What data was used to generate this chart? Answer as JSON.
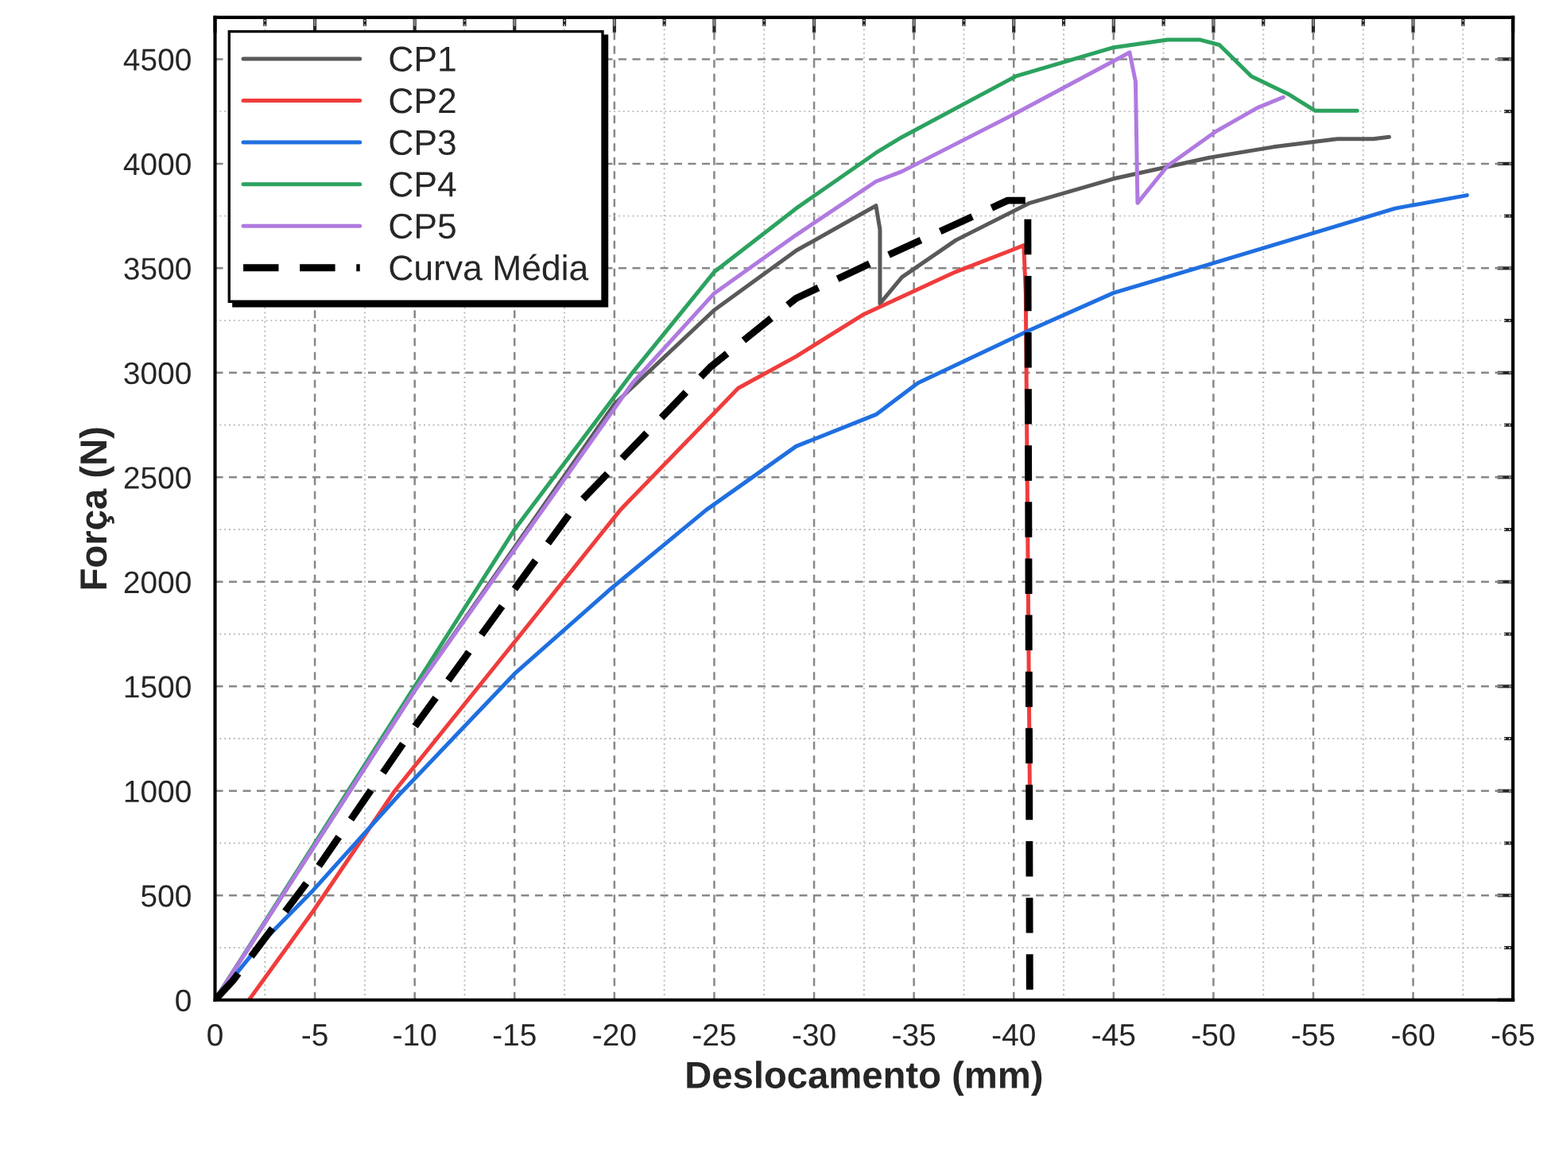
{
  "chart_data": {
    "type": "line",
    "xlabel": "Deslocamento (mm)",
    "ylabel": "Força (N)",
    "xlim": [
      0,
      -65
    ],
    "ylim": [
      0,
      4700
    ],
    "xticks": [
      0,
      -5,
      -10,
      -15,
      -20,
      -25,
      -30,
      -35,
      -40,
      -45,
      -50,
      -55,
      -60,
      -65
    ],
    "yticks": [
      0,
      500,
      1000,
      1500,
      2000,
      2500,
      3000,
      3500,
      4000,
      4500
    ],
    "grid": true,
    "legend": "top left",
    "marker": "none",
    "series": [
      {
        "name": "CP1",
        "color": "#595959",
        "line_style": "solid",
        "x": [
          0,
          -10,
          -20,
          -25,
          -29.1,
          -33.1,
          -33.3,
          -33.3,
          -34.4,
          -37.1,
          -40.8,
          -45.0,
          -49.8,
          -53.0,
          -56.2,
          -58.0,
          -58.8
        ],
        "values": [
          0,
          1480,
          2850,
          3300,
          3584,
          3799,
          3685,
          3331,
          3457,
          3634,
          3812,
          3928,
          4029,
          4080,
          4118,
          4118,
          4128
        ]
      },
      {
        "name": "CP2",
        "color": "#f03c3c",
        "line_style": "solid",
        "x": [
          -1.7,
          -4.9,
          -9.0,
          -15.0,
          -20.3,
          -26.2,
          -29.1,
          -32.5,
          -37.1,
          -40.5,
          -40.6,
          -40.8
        ],
        "values": [
          0,
          423,
          1000,
          1712,
          2344,
          2926,
          3078,
          3280,
          3483,
          3609,
          3382,
          1029
        ]
      },
      {
        "name": "CP3",
        "color": "#1f6fe0",
        "line_style": "solid",
        "x": [
          0,
          -2.3,
          -4.9,
          -9.2,
          -15.0,
          -19.8,
          -24.6,
          -29.1,
          -33.1,
          -35.2,
          -40.8,
          -45.0,
          -50.3,
          -55.6,
          -59.1,
          -62.7
        ],
        "values": [
          0,
          271,
          523,
          979,
          1560,
          1965,
          2344,
          2648,
          2800,
          2951,
          3204,
          3382,
          3533,
          3685,
          3786,
          3849
        ]
      },
      {
        "name": "CP4",
        "color": "#2ca25f",
        "line_style": "solid",
        "x": [
          0,
          -10,
          -15,
          -20.9,
          -25,
          -29.1,
          -33.1,
          -34.4,
          -40.1,
          -45.0,
          -47.7,
          -49.3,
          -50.3,
          -51.9,
          -53.8,
          -55.1,
          -57.2
        ],
        "values": [
          0,
          1500,
          2250,
          3000,
          3482,
          3786,
          4052,
          4127,
          4418,
          4556,
          4593,
          4593,
          4568,
          4418,
          4330,
          4253,
          4253
        ]
      },
      {
        "name": "CP5",
        "color": "#b07ae0",
        "line_style": "solid",
        "x": [
          0,
          -10,
          -20.9,
          -25,
          -29.1,
          -33.1,
          -34.4,
          -40.1,
          -45.8,
          -46.1,
          -46.2,
          -47.7,
          -50.1,
          -52.2,
          -53.5
        ],
        "values": [
          0,
          1480,
          2950,
          3380,
          3659,
          3915,
          3963,
          4241,
          4532,
          4393,
          3812,
          3989,
          4153,
          4267,
          4318
        ]
      },
      {
        "name": "Curva Média",
        "color": "#000000",
        "line_style": "dashed",
        "x": [
          0,
          -0.9,
          -4.9,
          -10,
          -15,
          -17.9,
          -24.8,
          -29.1,
          -33.1,
          -39.7,
          -40.7,
          -40.8
        ],
        "values": [
          0,
          93,
          599,
          1307,
          1965,
          2344,
          3027,
          3356,
          3536,
          3824,
          3824,
          0
        ]
      }
    ]
  }
}
